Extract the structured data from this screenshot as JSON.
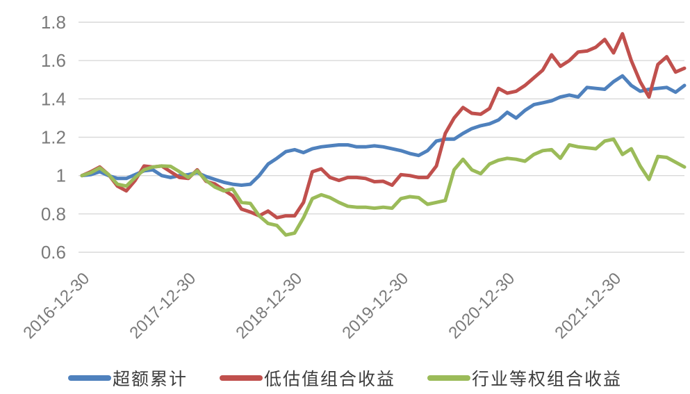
{
  "chart_data": {
    "type": "line",
    "title": "",
    "xlabel": "",
    "ylabel": "",
    "ylim": [
      0.6,
      1.8
    ],
    "y_ticks": [
      0.6,
      0.8,
      1.0,
      1.2,
      1.4,
      1.6,
      1.8
    ],
    "y_tick_labels": [
      "0.6",
      "0.8",
      "1",
      "1.2",
      "1.4",
      "1.6",
      "1.8"
    ],
    "x_tick_labels": [
      "2016-12-30",
      "2017-12-30",
      "2018-12-30",
      "2019-12-30",
      "2020-12-30",
      "2021-12-30"
    ],
    "x_tick_indices": [
      0,
      12,
      24,
      36,
      48,
      60
    ],
    "grid": "horizontal",
    "legend_position": "bottom",
    "colors": {
      "background": "#ffffff",
      "gridline": "#d9d9d9",
      "axis_label": "#7a7a7a",
      "legend_text": "#3d3d3d"
    },
    "series": [
      {
        "id": "excess-cumulative",
        "name": "超额累计",
        "color": "#4F81BD",
        "values": [
          1.0,
          1.005,
          1.02,
          1.0,
          0.985,
          0.985,
          1.005,
          1.025,
          1.03,
          1.0,
          0.99,
          1.0,
          1.005,
          1.015,
          0.995,
          0.98,
          0.965,
          0.955,
          0.95,
          0.955,
          1.0,
          1.06,
          1.09,
          1.125,
          1.135,
          1.12,
          1.14,
          1.15,
          1.155,
          1.16,
          1.16,
          1.15,
          1.15,
          1.155,
          1.15,
          1.14,
          1.13,
          1.115,
          1.105,
          1.13,
          1.18,
          1.19,
          1.19,
          1.22,
          1.245,
          1.26,
          1.27,
          1.29,
          1.33,
          1.3,
          1.34,
          1.37,
          1.38,
          1.39,
          1.41,
          1.42,
          1.41,
          1.46,
          1.455,
          1.45,
          1.49,
          1.52,
          1.47,
          1.44,
          1.45,
          1.455,
          1.46,
          1.435,
          1.47
        ]
      },
      {
        "id": "low-valuation-portfolio-return",
        "name": "低估值组合收益",
        "color": "#C0504D",
        "values": [
          1.0,
          1.02,
          1.045,
          1.005,
          0.945,
          0.92,
          0.975,
          1.05,
          1.045,
          1.05,
          1.02,
          0.99,
          0.985,
          1.03,
          0.97,
          0.956,
          0.925,
          0.895,
          0.825,
          0.81,
          0.79,
          0.815,
          0.78,
          0.79,
          0.79,
          0.86,
          1.02,
          1.035,
          0.99,
          0.975,
          0.99,
          0.99,
          0.985,
          0.968,
          0.97,
          0.95,
          1.005,
          1.0,
          0.99,
          0.99,
          1.05,
          1.22,
          1.3,
          1.355,
          1.325,
          1.32,
          1.35,
          1.455,
          1.43,
          1.44,
          1.47,
          1.51,
          1.55,
          1.63,
          1.57,
          1.6,
          1.645,
          1.65,
          1.67,
          1.71,
          1.64,
          1.74,
          1.6,
          1.49,
          1.41,
          1.58,
          1.62,
          1.54,
          1.56
        ]
      },
      {
        "id": "industry-equal-weight-portfolio-return",
        "name": "行业等权组合收益",
        "color": "#9BBB59",
        "values": [
          1.0,
          1.015,
          1.04,
          1.005,
          0.955,
          0.945,
          0.99,
          1.03,
          1.045,
          1.05,
          1.048,
          1.02,
          0.99,
          1.025,
          0.975,
          0.94,
          0.92,
          0.93,
          0.86,
          0.855,
          0.79,
          0.75,
          0.74,
          0.69,
          0.7,
          0.78,
          0.88,
          0.9,
          0.885,
          0.86,
          0.84,
          0.835,
          0.835,
          0.83,
          0.835,
          0.83,
          0.88,
          0.89,
          0.885,
          0.85,
          0.86,
          0.87,
          1.03,
          1.085,
          1.03,
          1.01,
          1.06,
          1.08,
          1.09,
          1.085,
          1.075,
          1.11,
          1.13,
          1.135,
          1.09,
          1.16,
          1.15,
          1.145,
          1.14,
          1.18,
          1.19,
          1.11,
          1.14,
          1.05,
          0.98,
          1.1,
          1.095,
          1.07,
          1.045
        ]
      }
    ]
  }
}
